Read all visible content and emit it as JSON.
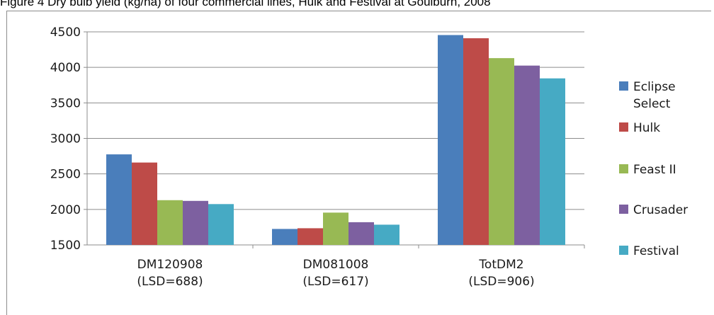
{
  "caption": "Figure 4 Dry bulb yield (kg/ha) of four commercial lines, Hulk and Festival at Goulburn, 2008",
  "chart_data": {
    "type": "bar",
    "categories": [
      [
        "DM120908",
        "(LSD=688)"
      ],
      [
        "DM081008",
        "(LSD=617)"
      ],
      [
        "TotDM2",
        "(LSD=906)"
      ]
    ],
    "series": [
      {
        "name": [
          "Eclipse",
          "Select"
        ],
        "color": "#4a7ebb",
        "values": [
          2775,
          1725,
          4455
        ]
      },
      {
        "name": [
          "Hulk"
        ],
        "color": "#be4b48",
        "values": [
          2660,
          1735,
          4410
        ]
      },
      {
        "name": [
          "Feast II"
        ],
        "color": "#98b954",
        "values": [
          2130,
          1955,
          4130
        ]
      },
      {
        "name": [
          "Crusader"
        ],
        "color": "#7d60a0",
        "values": [
          2120,
          1820,
          4025
        ]
      },
      {
        "name": [
          "Festival"
        ],
        "color": "#46aac4",
        "values": [
          2075,
          1785,
          3845
        ]
      }
    ],
    "ylim": [
      1500,
      4500
    ],
    "yticks": [
      1500,
      2000,
      2500,
      3000,
      3500,
      4000,
      4500
    ],
    "grid": true,
    "legend_position": "right"
  }
}
